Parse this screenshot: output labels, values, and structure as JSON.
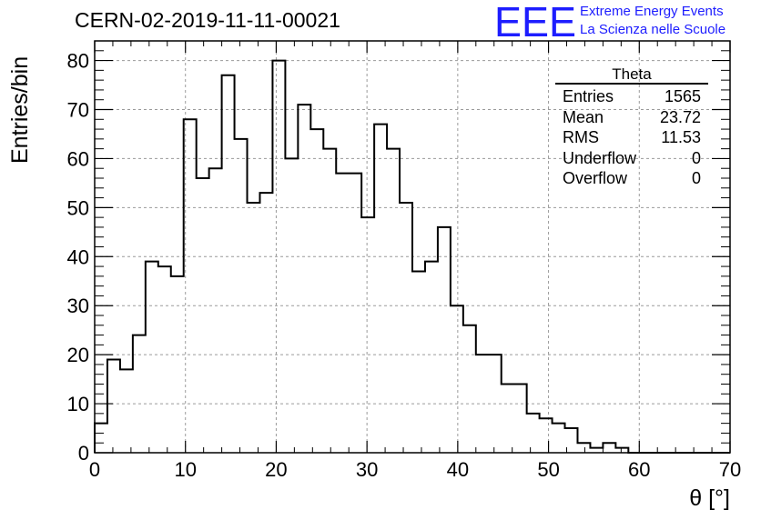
{
  "header": {
    "title": "CERN-02-2019-11-11-00021",
    "logo_text": "EEE",
    "logo_line1": "Extreme Energy Events",
    "logo_line2": "La Scienza nelle Scuole"
  },
  "stats_box": {
    "title": "Theta",
    "rows": [
      {
        "label": "Entries",
        "value": "1565"
      },
      {
        "label": "Mean",
        "value": "23.72"
      },
      {
        "label": "RMS",
        "value": "11.53"
      },
      {
        "label": "Underflow",
        "value": "0"
      },
      {
        "label": "Overflow",
        "value": "0"
      }
    ]
  },
  "colors": {
    "brand": "#1d1dff",
    "histogram_line": "#000000",
    "grid": "#9a9a9a"
  },
  "chart_data": {
    "type": "bar",
    "histogram": true,
    "bin_width": 1.4,
    "x_edges_start": 0,
    "values": [
      6,
      19,
      17,
      24,
      39,
      38,
      36,
      68,
      56,
      58,
      77,
      64,
      51,
      53,
      80,
      60,
      71,
      66,
      62,
      57,
      57,
      48,
      67,
      62,
      51,
      37,
      39,
      46,
      30,
      26,
      20,
      20,
      14,
      14,
      8,
      7,
      6,
      5,
      2,
      1,
      2,
      1,
      0,
      0,
      0,
      0,
      0,
      0,
      0,
      0
    ],
    "xlabel": "θ [°]",
    "ylabel": "Entries/bin",
    "xlim": [
      0,
      70
    ],
    "ylim": [
      0,
      84
    ],
    "x_ticks": [
      "0",
      "10",
      "20",
      "30",
      "40",
      "50",
      "60",
      "70"
    ],
    "y_ticks": [
      "0",
      "10",
      "20",
      "30",
      "40",
      "50",
      "60",
      "70",
      "80"
    ],
    "grid": true,
    "legend": "top-right stats box"
  }
}
